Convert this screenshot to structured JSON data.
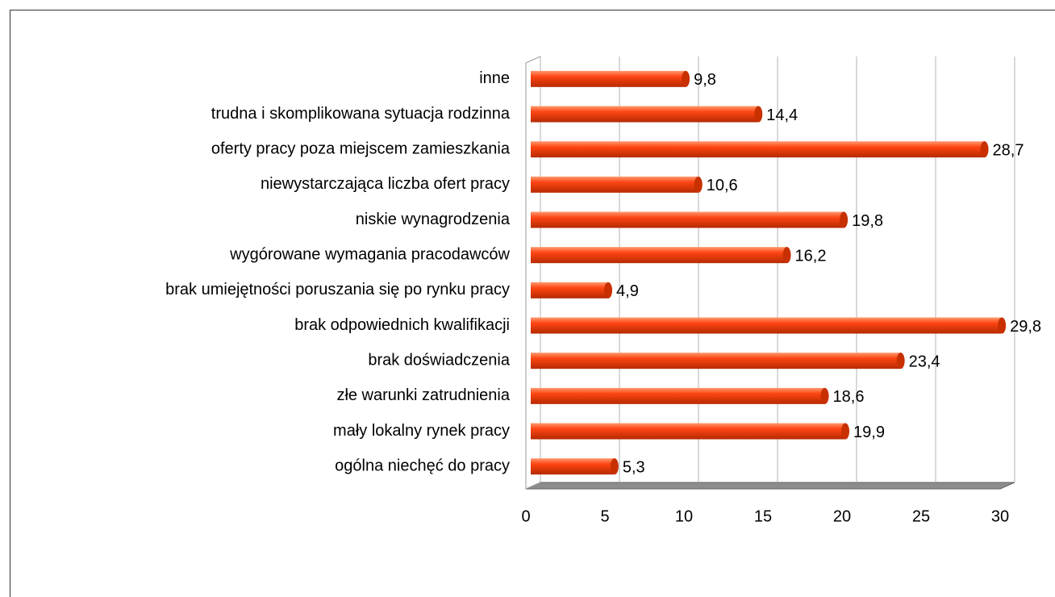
{
  "chart_data": {
    "type": "bar",
    "orientation": "horizontal",
    "categories": [
      "inne",
      "trudna i skomplikowana sytuacja rodzinna",
      "oferty pracy poza miejscem zamieszkania",
      "niewystarczająca liczba ofert pracy",
      "niskie wynagrodzenia",
      "wygórowane wymagania pracodawców",
      "brak umiejętności poruszania się po rynku pracy",
      "brak odpowiednich kwalifikacji",
      "brak doświadczenia",
      "złe warunki zatrudnienia",
      "mały lokalny rynek pracy",
      "ogólna niechęć do pracy"
    ],
    "values": [
      9.8,
      14.4,
      28.7,
      10.6,
      19.8,
      16.2,
      4.9,
      29.8,
      23.4,
      18.6,
      19.9,
      5.3
    ],
    "value_labels": [
      "9,8",
      "14,4",
      "28,7",
      "10,6",
      "19,8",
      "16,2",
      "4,9",
      "29,8",
      "23,4",
      "18,6",
      "19,9",
      "5,3"
    ],
    "color": "#ff4513",
    "xlim": [
      0,
      30
    ],
    "xticks": [
      0,
      5,
      10,
      15,
      20,
      25,
      30
    ],
    "grid": true
  }
}
